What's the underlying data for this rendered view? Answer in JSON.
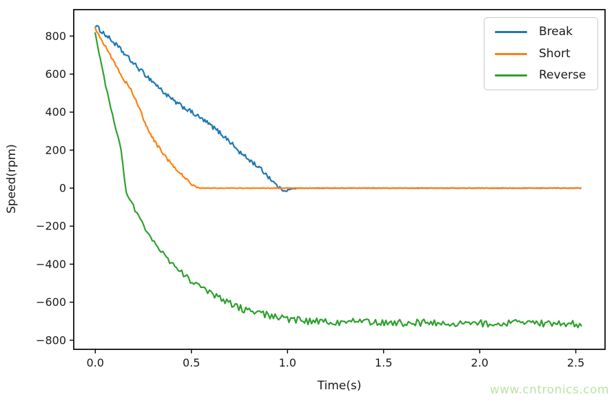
{
  "watermark": {
    "text": "www.cntronics.com",
    "color": "#bce3a8"
  },
  "chart_data": {
    "type": "line",
    "title": "",
    "xlabel": "Time(s)",
    "ylabel": "Speed(rpm)",
    "xlim": [
      -0.112,
      2.652
    ],
    "ylim": [
      -848,
      939
    ],
    "xtick_values": [
      0,
      0.5,
      1,
      1.5,
      2,
      2.5
    ],
    "xtick_labels": [
      "0.0",
      "0.5",
      "1.0",
      "1.5",
      "2.0",
      "2.5"
    ],
    "ytick_values": [
      800,
      600,
      400,
      200,
      0,
      -200,
      -400,
      -600,
      -800
    ],
    "ytick_labels": [
      "800",
      "600",
      "400",
      "200",
      "0",
      "−200",
      "−400",
      "−600",
      "−800"
    ],
    "grid": false,
    "axis_color": "#000000",
    "tick_label_color": "#1a1a1a",
    "legend": {
      "position": "upper right",
      "entries": [
        "Break",
        "Short",
        "Reverse"
      ]
    },
    "series": [
      {
        "name": "Break",
        "color": "#1f77b4",
        "sample_step": 0.006,
        "keypoints": [
          [
            0,
            855
          ],
          [
            0.1,
            762
          ],
          [
            0.2,
            655
          ],
          [
            0.3,
            560
          ],
          [
            0.4,
            465
          ],
          [
            0.5,
            400
          ],
          [
            0.6,
            330
          ],
          [
            0.7,
            245
          ],
          [
            0.75,
            190
          ],
          [
            0.8,
            150
          ],
          [
            0.85,
            110
          ],
          [
            0.9,
            62
          ],
          [
            0.96,
            0
          ],
          [
            0.99,
            -12
          ],
          [
            1.03,
            -3
          ],
          [
            1.1,
            0
          ],
          [
            2.53,
            0
          ]
        ],
        "noise_profile": [
          [
            0,
            12
          ],
          [
            0.9,
            12
          ],
          [
            0.98,
            7
          ],
          [
            1.05,
            1
          ],
          [
            2.53,
            1
          ]
        ]
      },
      {
        "name": "Short",
        "color": "#ff7f0e",
        "sample_step": 0.006,
        "keypoints": [
          [
            0,
            845
          ],
          [
            0.05,
            752
          ],
          [
            0.1,
            660
          ],
          [
            0.15,
            572
          ],
          [
            0.2,
            490
          ],
          [
            0.25,
            368
          ],
          [
            0.3,
            262
          ],
          [
            0.35,
            186
          ],
          [
            0.4,
            122
          ],
          [
            0.45,
            70
          ],
          [
            0.5,
            22
          ],
          [
            0.54,
            2
          ],
          [
            0.6,
            0
          ],
          [
            2.53,
            0
          ]
        ],
        "noise_profile": [
          [
            0,
            10
          ],
          [
            0.48,
            8
          ],
          [
            0.56,
            1.5
          ],
          [
            2.53,
            1.5
          ]
        ]
      },
      {
        "name": "Reverse",
        "color": "#2ca02c",
        "sample_step": 0.009,
        "keypoints": [
          [
            0,
            810
          ],
          [
            0.05,
            560
          ],
          [
            0.1,
            340
          ],
          [
            0.14,
            160
          ],
          [
            0.16,
            -15
          ],
          [
            0.19,
            -80
          ],
          [
            0.26,
            -210
          ],
          [
            0.34,
            -330
          ],
          [
            0.43,
            -425
          ],
          [
            0.52,
            -505
          ],
          [
            0.65,
            -580
          ],
          [
            0.78,
            -640
          ],
          [
            0.93,
            -675
          ],
          [
            1.1,
            -697
          ],
          [
            1.5,
            -706
          ],
          [
            2.0,
            -710
          ],
          [
            2.53,
            -714
          ]
        ],
        "noise_profile": [
          [
            0,
            8
          ],
          [
            0.2,
            10
          ],
          [
            0.6,
            16
          ],
          [
            1.0,
            20
          ],
          [
            2.53,
            20
          ]
        ]
      }
    ]
  }
}
